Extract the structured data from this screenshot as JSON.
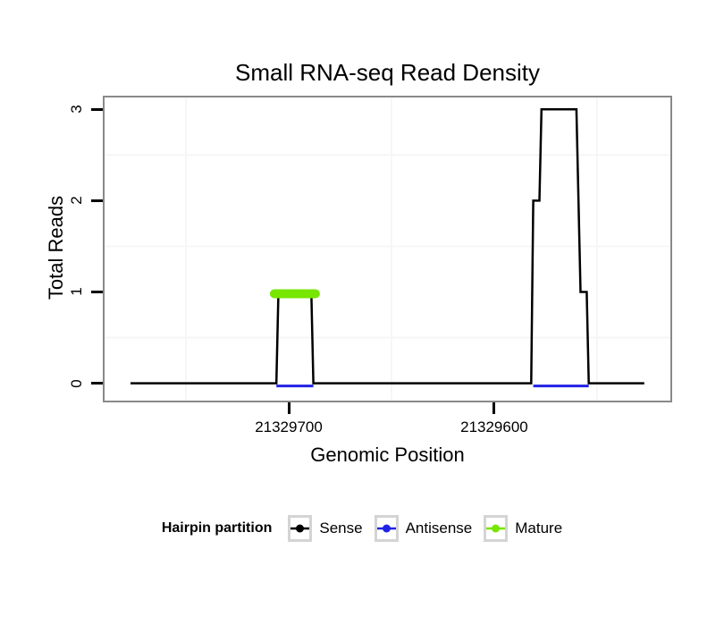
{
  "chart_data": {
    "type": "line",
    "subtype": "step",
    "title": "Small RNA-seq Read Density",
    "xlabel": "Genomic Position",
    "ylabel": "Total Reads",
    "x_reversed": true,
    "xlim": [
      21329789.6,
      21329514.3
    ],
    "ylim": [
      -0.19,
      3.13
    ],
    "x_ticks": [
      {
        "value": 21329700,
        "label": "21329700"
      },
      {
        "value": 21329600,
        "label": "21329600"
      }
    ],
    "y_ticks": [
      {
        "value": 0,
        "label": "0"
      },
      {
        "value": 1,
        "label": "1"
      },
      {
        "value": 2,
        "label": "2"
      },
      {
        "value": 3,
        "label": "3"
      }
    ],
    "x_minor_gridlines": [
      21329750,
      21329650,
      21329550
    ],
    "y_minor_gridlines": [
      0.5,
      1.5,
      2.5
    ],
    "grid_on": true,
    "colors": {
      "sense": "#000000",
      "antisense": "#2222e6",
      "mature": "#77e600",
      "grid": "#f6f6f6",
      "panel_border": "#898989"
    },
    "series": [
      {
        "name": "Antisense",
        "color": "#2222e6",
        "type": "baseline-segments",
        "y": 0,
        "segments": [
          [
            21329706,
            21329688
          ],
          [
            21329581,
            21329554
          ]
        ]
      },
      {
        "name": "Sense",
        "color": "#000000",
        "type": "step",
        "points": [
          [
            21329777,
            0
          ],
          [
            21329706,
            0
          ],
          [
            21329705,
            1
          ],
          [
            21329689,
            1
          ],
          [
            21329688,
            0
          ],
          [
            21329582,
            0
          ],
          [
            21329581,
            2
          ],
          [
            21329578,
            2
          ],
          [
            21329577,
            3
          ],
          [
            21329560,
            3
          ],
          [
            21329558,
            1
          ],
          [
            21329555,
            1
          ],
          [
            21329554,
            0
          ],
          [
            21329527,
            0
          ]
        ]
      },
      {
        "name": "Mature",
        "color": "#77e600",
        "type": "thick-segments",
        "y": 1,
        "segments": [
          [
            21329707,
            21329687
          ]
        ]
      }
    ],
    "legend": {
      "position": "bottom",
      "title": "Hairpin partition",
      "entries": [
        {
          "label": "Sense",
          "color": "#000000"
        },
        {
          "label": "Antisense",
          "color": "#2222e6"
        },
        {
          "label": "Mature",
          "color": "#77e600"
        }
      ]
    }
  }
}
